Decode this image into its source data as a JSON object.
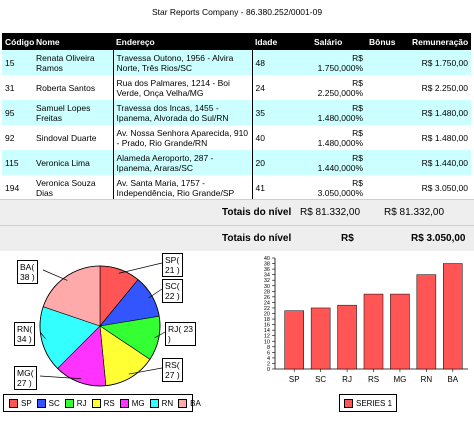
{
  "report": {
    "title": "Star Reports Company - 86.380.252/0001-09"
  },
  "table": {
    "headers": {
      "codigo": "Código",
      "nome": "Nome",
      "endereco": "Endereço",
      "idade": "Idade",
      "salario": "Salário",
      "bonus": "Bônus",
      "remuneracao": "Remuneração"
    },
    "rows": [
      {
        "codigo": "15",
        "nome": "Renata Oliveira Ramos",
        "endereco": "Travessa Outono, 1956 - Alvira Norte, Três Rios/SC",
        "idade": "48",
        "salario": "R$ 1.750,000%",
        "bonus": "",
        "remuneracao": "R$ 1.750,00"
      },
      {
        "codigo": "31",
        "nome": "Roberta Santos",
        "endereco": "Rua dos Palmares, 1214 - Boi Verde, Onça Velha/MG",
        "idade": "24",
        "salario": "R$ 2.250,000%",
        "bonus": "",
        "remuneracao": "R$ 2.250,00"
      },
      {
        "codigo": "95",
        "nome": "Samuel Lopes Freitas",
        "endereco": "Travessa dos Incas, 1455 - Ipanema, Alvorada do Sul/RN",
        "idade": "35",
        "salario": "R$ 1.480,000%",
        "bonus": "",
        "remuneracao": "R$ 1.480,00"
      },
      {
        "codigo": "92",
        "nome": "Sindoval Duarte",
        "endereco": "Av. Nossa Senhora Aparecida, 910 - Prado, Rio Grande/RN",
        "idade": "40",
        "salario": "R$ 1.480,000%",
        "bonus": "",
        "remuneracao": "R$ 1.480,00"
      },
      {
        "codigo": "115",
        "nome": "Veronica Lima",
        "endereco": "Alameda Aeroporto, 287 - Ipanema, Araras/SC",
        "idade": "20",
        "salario": "R$ 1.440,000%",
        "bonus": "",
        "remuneracao": "R$ 1.440,00"
      },
      {
        "codigo": "194",
        "nome": "Veronica Souza Dias",
        "endereco": "Av. Santa Maria, 1757 - Independência, Rio Grande/SP",
        "idade": "41",
        "salario": "R$ 3.050,000%",
        "bonus": "",
        "remuneracao": "R$ 3.050,00"
      }
    ]
  },
  "totals": [
    {
      "label": "Totais do nível",
      "col_a": "R$ 81.332,00",
      "col_b": "R$ 81.332,00"
    },
    {
      "label": "Totais do nível",
      "col_a": "R$",
      "col_b": "R$ 3.050,00"
    }
  ],
  "chart_data": [
    {
      "type": "pie",
      "categories": [
        "SP",
        "SC",
        "RJ",
        "RS",
        "MG",
        "RN",
        "BA"
      ],
      "values": [
        21,
        22,
        23,
        27,
        27,
        34,
        38
      ],
      "slice_labels": [
        "SP(\n21 )",
        "SC(\n22 )",
        "RJ( 23\n)",
        "RS(\n27 )",
        "MG(\n27 )",
        "RN(\n34 )",
        "BA(\n38 )"
      ],
      "colors": [
        "#ff5555",
        "#3355ff",
        "#33ff33",
        "#ffff33",
        "#ff33ff",
        "#33ffff",
        "#ffaaaa"
      ],
      "legend": "bottom"
    },
    {
      "type": "bar",
      "categories": [
        "SP",
        "SC",
        "RJ",
        "RS",
        "MG",
        "RN",
        "BA"
      ],
      "series": [
        {
          "name": "SERIES 1",
          "values": [
            21,
            22,
            23,
            27,
            27,
            34,
            38
          ],
          "color": "#ff5555"
        }
      ],
      "ylim": [
        0,
        40
      ],
      "yticks": [
        0,
        2,
        4,
        6,
        8,
        10,
        12,
        14,
        16,
        18,
        20,
        22,
        24,
        26,
        28,
        30,
        32,
        34,
        36,
        38,
        40
      ],
      "grid": false,
      "legend": "bottom"
    }
  ]
}
